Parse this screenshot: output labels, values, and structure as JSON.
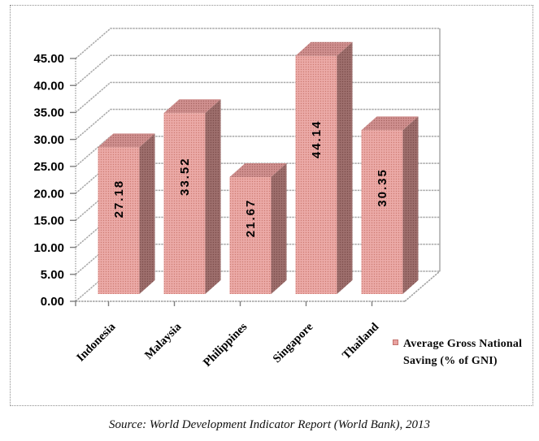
{
  "source_note": "Source: World Development Indicator Report (World Bank), 2013",
  "legend": {
    "label_lines": [
      "Average Gross National",
      "Saving (% of GNI)"
    ]
  },
  "chart_data": {
    "type": "bar",
    "subtype": "3d-column",
    "title": "",
    "xlabel": "",
    "ylabel": "",
    "categories": [
      "Indonesia",
      "Malaysia",
      "Philippines",
      "Singapore",
      "Thailand"
    ],
    "values": [
      27.18,
      33.52,
      21.67,
      44.14,
      30.35
    ],
    "value_labels": [
      "27.18",
      "33.52",
      "21.67",
      "44.14",
      "30.35"
    ],
    "series_name": "Average Gross National Saving (% of GNI)",
    "ylim": [
      0,
      45
    ],
    "ytick_step": 5,
    "y_tick_labels": [
      "0.00",
      "5.00",
      "10.00",
      "15.00",
      "20.00",
      "25.00",
      "30.00",
      "35.00",
      "40.00",
      "45.00"
    ],
    "grid": true,
    "legend_position": "bottom-right",
    "colors": {
      "bar_front": "#ECABA8",
      "bar_front_dot": "#CD7B73",
      "bar_top": "#D09190",
      "bar_top_dot": "#A66461",
      "bar_side": "#9E6F6D",
      "bar_side_dot": "#7B4B49",
      "legend_marker": "#E8A2A0",
      "gridline": "#A8A8A8",
      "axis": "#9E9E9E",
      "tick": "#7F7F7F",
      "text": "#000000"
    }
  }
}
